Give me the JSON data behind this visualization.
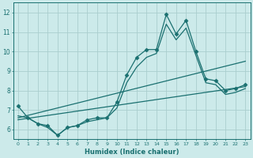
{
  "xlabel": "Humidex (Indice chaleur)",
  "bg_color": "#cceaea",
  "grid_color": "#aacece",
  "line_color": "#1a7070",
  "xlim": [
    -0.5,
    23.5
  ],
  "ylim": [
    5.5,
    12.5
  ],
  "yticks": [
    6,
    7,
    8,
    9,
    10,
    11,
    12
  ],
  "xticks": [
    0,
    1,
    2,
    3,
    4,
    5,
    6,
    7,
    8,
    9,
    10,
    11,
    12,
    13,
    14,
    15,
    16,
    17,
    18,
    19,
    20,
    21,
    22,
    23
  ],
  "lines": [
    {
      "x": [
        0,
        1,
        2,
        3,
        4,
        5,
        6,
        7,
        8,
        9,
        10,
        11,
        12,
        13,
        14,
        15,
        16,
        17,
        18,
        19,
        20,
        21,
        22,
        23
      ],
      "y": [
        7.2,
        6.6,
        6.3,
        6.2,
        5.7,
        6.1,
        6.2,
        6.5,
        6.6,
        6.6,
        7.4,
        8.8,
        9.7,
        10.1,
        10.1,
        11.9,
        10.9,
        11.6,
        10.0,
        8.6,
        8.5,
        8.0,
        8.1,
        8.3
      ],
      "marker": "D",
      "markersize": 2.5,
      "linewidth": 0.9
    },
    {
      "x": [
        0,
        1,
        2,
        3,
        4,
        5,
        6,
        7,
        8,
        9,
        10,
        11,
        12,
        13,
        14,
        15,
        16,
        17,
        18,
        19,
        20,
        21,
        22,
        23
      ],
      "y": [
        6.7,
        6.6,
        6.3,
        6.1,
        5.7,
        6.1,
        6.2,
        6.4,
        6.5,
        6.6,
        7.1,
        8.4,
        9.2,
        9.7,
        9.9,
        11.4,
        10.6,
        11.2,
        9.8,
        8.4,
        8.3,
        7.8,
        7.9,
        8.1
      ],
      "marker": null,
      "markersize": 0,
      "linewidth": 0.9
    },
    {
      "x": [
        0,
        23
      ],
      "y": [
        6.6,
        9.5
      ],
      "marker": null,
      "markersize": 0,
      "linewidth": 0.9
    },
    {
      "x": [
        0,
        23
      ],
      "y": [
        6.5,
        8.2
      ],
      "marker": null,
      "markersize": 0,
      "linewidth": 0.9
    }
  ]
}
